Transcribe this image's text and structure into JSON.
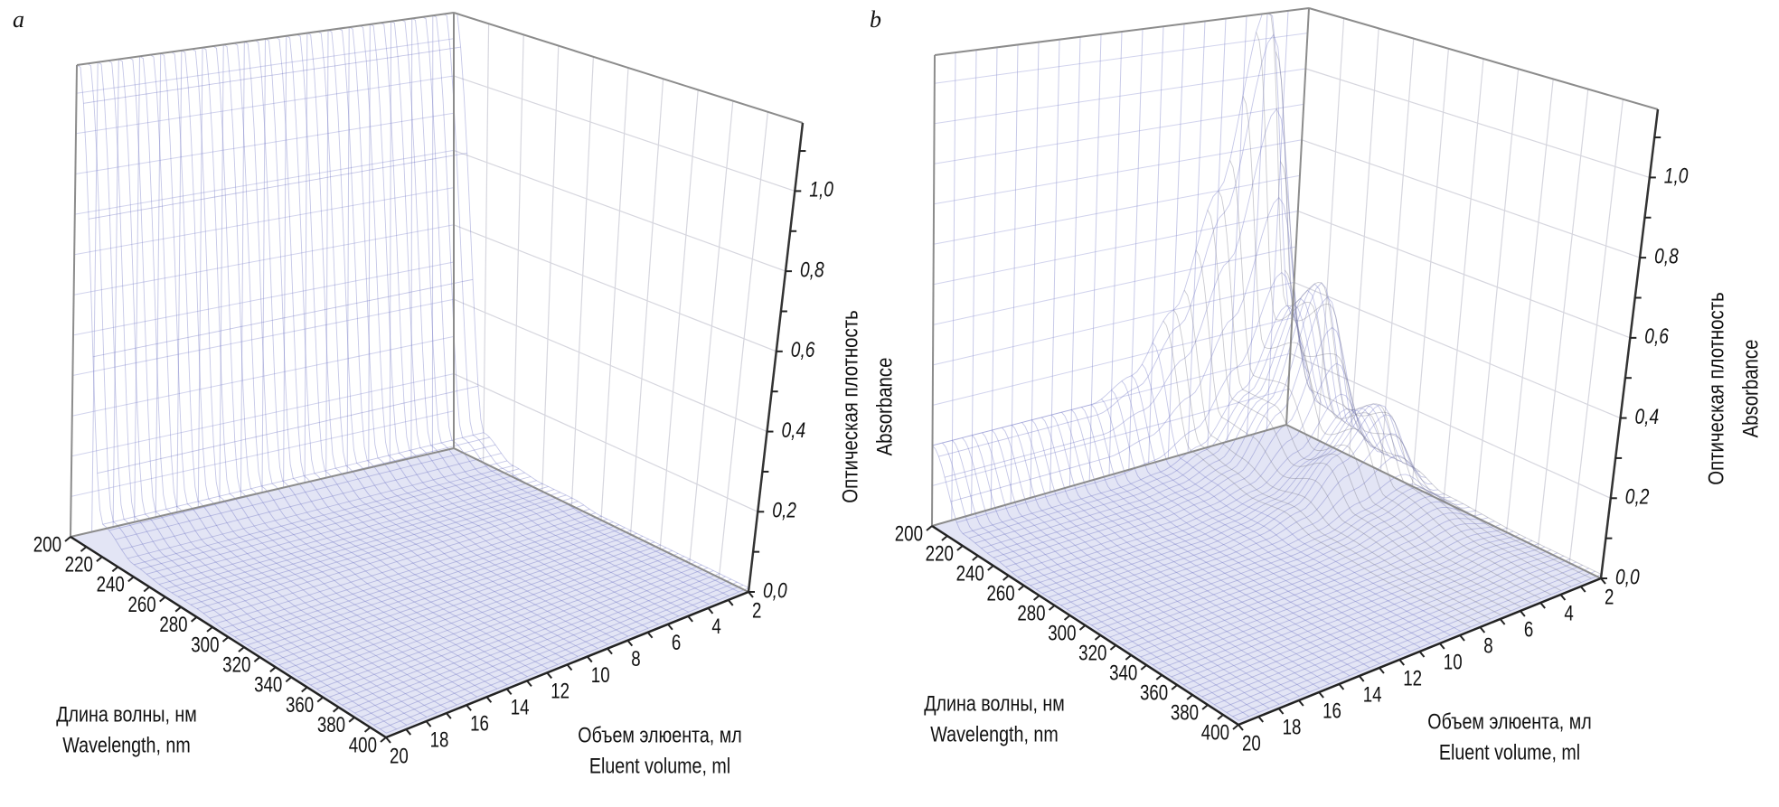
{
  "chart_data": [
    {
      "panel": "a",
      "type": "surface",
      "x": {
        "label": [
          "Длина волны, нм",
          "Wavelength, nm"
        ],
        "range": [
          200,
          400
        ],
        "ticks": [
          "200",
          "220",
          "240",
          "260",
          "280",
          "300",
          "320",
          "340",
          "360",
          "380",
          "400"
        ]
      },
      "y": {
        "label": [
          "Объем элюента, мл",
          "Eluent volume, ml"
        ],
        "range": [
          2,
          20
        ],
        "ticks": [
          "2",
          "4",
          "6",
          "8",
          "10",
          "12",
          "14",
          "16",
          "18",
          "20"
        ]
      },
      "z": {
        "label": [
          "Оптическая плотность",
          "Absorbance"
        ],
        "range": [
          0,
          1.17
        ],
        "ticks": [
          "0,0",
          "0,2",
          "0,4",
          "0,6",
          "0,8",
          "1,0"
        ]
      },
      "grid": true,
      "colors": {
        "surface": "#6d72c4",
        "floor": "#dcdff3",
        "wall_grid": "#9a9ed6",
        "box": "#8c8c8c"
      },
      "surface": {
        "wavelength": [
          200,
          220,
          240,
          260,
          280,
          300,
          350,
          400
        ],
        "volume": [
          2,
          4,
          6,
          8,
          10,
          12,
          14,
          16,
          18,
          20
        ],
        "absorbance": [
          [
            1.2,
            0.08,
            0.03,
            0.02,
            0.02,
            0.01,
            0.01,
            0.01
          ],
          [
            1.2,
            0.08,
            0.03,
            0.02,
            0.02,
            0.01,
            0.01,
            0.01
          ],
          [
            1.2,
            0.08,
            0.03,
            0.02,
            0.02,
            0.01,
            0.01,
            0.01
          ],
          [
            1.2,
            0.08,
            0.03,
            0.02,
            0.02,
            0.01,
            0.01,
            0.01
          ],
          [
            1.2,
            0.08,
            0.03,
            0.02,
            0.02,
            0.01,
            0.01,
            0.01
          ],
          [
            1.2,
            0.08,
            0.03,
            0.02,
            0.02,
            0.01,
            0.01,
            0.01
          ],
          [
            1.2,
            0.08,
            0.03,
            0.02,
            0.02,
            0.01,
            0.01,
            0.01
          ],
          [
            1.2,
            0.08,
            0.03,
            0.02,
            0.02,
            0.01,
            0.01,
            0.01
          ],
          [
            1.2,
            0.08,
            0.03,
            0.02,
            0.02,
            0.01,
            0.01,
            0.01
          ],
          [
            1.2,
            0.08,
            0.03,
            0.02,
            0.02,
            0.01,
            0.01,
            0.01
          ]
        ]
      }
    },
    {
      "panel": "b",
      "type": "surface",
      "x": {
        "label": [
          "Длина волны, нм",
          "Wavelength, nm"
        ],
        "range": [
          200,
          400
        ],
        "ticks": [
          "200",
          "220",
          "240",
          "260",
          "280",
          "300",
          "320",
          "340",
          "360",
          "380",
          "400"
        ]
      },
      "y": {
        "label": [
          "Объем элюента, мл",
          "Eluent volume, ml"
        ],
        "range": [
          2,
          20
        ],
        "ticks": [
          "2",
          "4",
          "6",
          "8",
          "10",
          "12",
          "14",
          "16",
          "18",
          "20"
        ]
      },
      "z": {
        "label": [
          "Оптическая плотность",
          "Absorbance"
        ],
        "range": [
          0,
          1.17
        ],
        "ticks": [
          "0,0",
          "0,2",
          "0,4",
          "0,6",
          "0,8",
          "1,0"
        ]
      },
      "grid": true,
      "colors": {
        "surface": "#6d72c4",
        "floor": "#dcdff3",
        "wall_grid": "#9a9ed6",
        "box": "#8c8c8c",
        "peak": "#7a7a8a"
      },
      "surface": {
        "wavelength": [
          200,
          220,
          240,
          260,
          280,
          300,
          350,
          400
        ],
        "volume": [
          2,
          4,
          6,
          8,
          10,
          12,
          14,
          16,
          18,
          20
        ],
        "absorbance": [
          [
            0.3,
            0.1,
            0.08,
            0.05,
            0.05,
            0.02,
            0.01,
            0.01
          ],
          [
            1.2,
            0.4,
            0.5,
            0.2,
            0.25,
            0.08,
            0.02,
            0.01
          ],
          [
            0.7,
            0.2,
            0.2,
            0.1,
            0.15,
            0.05,
            0.01,
            0.01
          ],
          [
            0.4,
            0.08,
            0.06,
            0.04,
            0.05,
            0.02,
            0.01,
            0.01
          ],
          [
            0.25,
            0.04,
            0.03,
            0.02,
            0.02,
            0.01,
            0.01,
            0.01
          ],
          [
            0.2,
            0.03,
            0.02,
            0.01,
            0.01,
            0.01,
            0.01,
            0.01
          ],
          [
            0.2,
            0.03,
            0.02,
            0.01,
            0.01,
            0.01,
            0.01,
            0.01
          ],
          [
            0.2,
            0.03,
            0.02,
            0.01,
            0.01,
            0.01,
            0.01,
            0.01
          ],
          [
            0.2,
            0.03,
            0.02,
            0.01,
            0.01,
            0.01,
            0.01,
            0.01
          ],
          [
            0.2,
            0.03,
            0.02,
            0.01,
            0.01,
            0.01,
            0.01,
            0.01
          ]
        ]
      }
    }
  ]
}
